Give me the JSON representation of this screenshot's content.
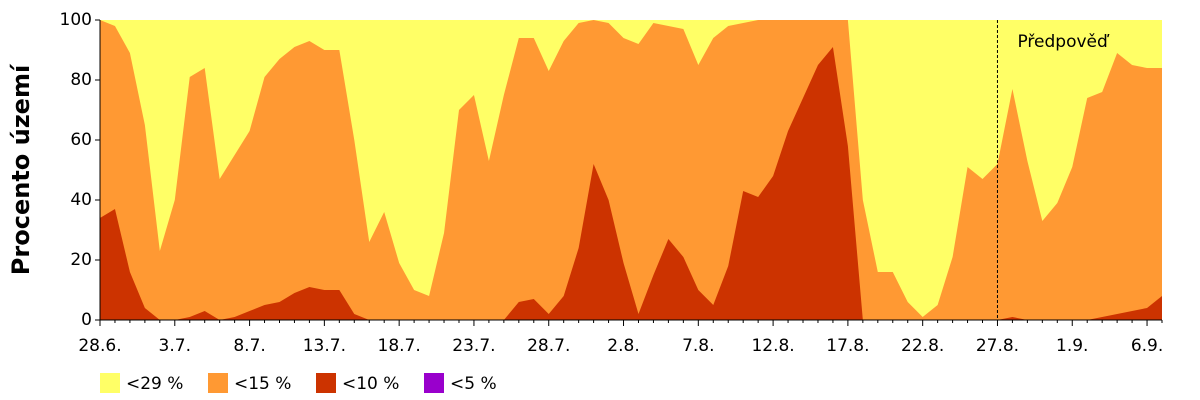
{
  "chart_data": {
    "type": "area",
    "y_label": "Procento území",
    "categories": [
      "28.6.",
      null,
      null,
      null,
      null,
      "3.7.",
      null,
      null,
      null,
      null,
      "8.7.",
      null,
      null,
      null,
      null,
      "13.7.",
      null,
      null,
      null,
      null,
      "18.7.",
      null,
      null,
      null,
      null,
      "23.7.",
      null,
      null,
      null,
      null,
      "28.7.",
      null,
      null,
      null,
      null,
      "2.8.",
      null,
      null,
      null,
      null,
      "7.8.",
      null,
      null,
      null,
      null,
      "12.8.",
      null,
      null,
      null,
      null,
      "17.8.",
      null,
      null,
      null,
      null,
      "22.8.",
      null,
      null,
      null,
      null,
      "27.8.",
      null,
      null,
      null,
      null,
      "1.9.",
      null,
      null,
      null,
      null,
      "6.9.",
      null
    ],
    "series": [
      {
        "name": "<29 %",
        "color": "#ffff66",
        "values": [
          100,
          100,
          100,
          100,
          100,
          100,
          100,
          100,
          100,
          100,
          100,
          100,
          100,
          100,
          100,
          100,
          100,
          100,
          100,
          100,
          100,
          100,
          100,
          100,
          100,
          100,
          100,
          100,
          100,
          100,
          100,
          100,
          100,
          100,
          100,
          100,
          100,
          100,
          100,
          100,
          100,
          100,
          100,
          100,
          100,
          100,
          100,
          100,
          100,
          100,
          100,
          100,
          100,
          100,
          100,
          100,
          100,
          100,
          100,
          100,
          100,
          100,
          100,
          100,
          100,
          100,
          100,
          100,
          100,
          100,
          100,
          100
        ]
      },
      {
        "name": "<15 %",
        "color": "#ff9933",
        "values": [
          100,
          98,
          89,
          65,
          23,
          40,
          81,
          84,
          47,
          55,
          63,
          81,
          87,
          91,
          93,
          90,
          90,
          60,
          26,
          36,
          19,
          10,
          8,
          29,
          70,
          75,
          53,
          75,
          94,
          94,
          83,
          93,
          99,
          100,
          99,
          94,
          92,
          99,
          98,
          97,
          85,
          94,
          98,
          99,
          100,
          100,
          100,
          100,
          100,
          100,
          100,
          40,
          16,
          16,
          6,
          1,
          5,
          21,
          51,
          47,
          52,
          77,
          53,
          33,
          39,
          51,
          74,
          76,
          89,
          85,
          84,
          84
        ]
      },
      {
        "name": "<10 %",
        "color": "#cc3300",
        "values": [
          34,
          37,
          16,
          4,
          0,
          0,
          1,
          3,
          0,
          1,
          3,
          5,
          6,
          9,
          11,
          10,
          10,
          2,
          0,
          0,
          0,
          0,
          0,
          0,
          0,
          0,
          0,
          0,
          6,
          7,
          2,
          8,
          24,
          52,
          40,
          19,
          2,
          15,
          27,
          21,
          10,
          5,
          18,
          43,
          41,
          48,
          63,
          74,
          85,
          91,
          58,
          0,
          0,
          0,
          0,
          0,
          0,
          0,
          0,
          0,
          0,
          1,
          0,
          0,
          0,
          0,
          0,
          1,
          2,
          3,
          4,
          8
        ]
      },
      {
        "name": "<5 %",
        "color": "#9900cc",
        "values": [
          0,
          0,
          0,
          0,
          0,
          0,
          0,
          0,
          0,
          0,
          0,
          0,
          0,
          0,
          0,
          0,
          0,
          0,
          0,
          0,
          0,
          0,
          0,
          0,
          0,
          0,
          0,
          0,
          0,
          0,
          0,
          0,
          0,
          0,
          0,
          0,
          0,
          0,
          0,
          0,
          0,
          0,
          0,
          0,
          0,
          0,
          0,
          0,
          0,
          0,
          0,
          0,
          0,
          0,
          0,
          0,
          0,
          0,
          0,
          0,
          0,
          0,
          0,
          0,
          0,
          0,
          0,
          0,
          0,
          0,
          0,
          0
        ]
      }
    ],
    "ylim": [
      0,
      100
    ],
    "yticks": [
      0,
      20,
      40,
      60,
      80,
      100
    ],
    "annotation": {
      "text": "Předpověď",
      "category": "27.8."
    }
  }
}
